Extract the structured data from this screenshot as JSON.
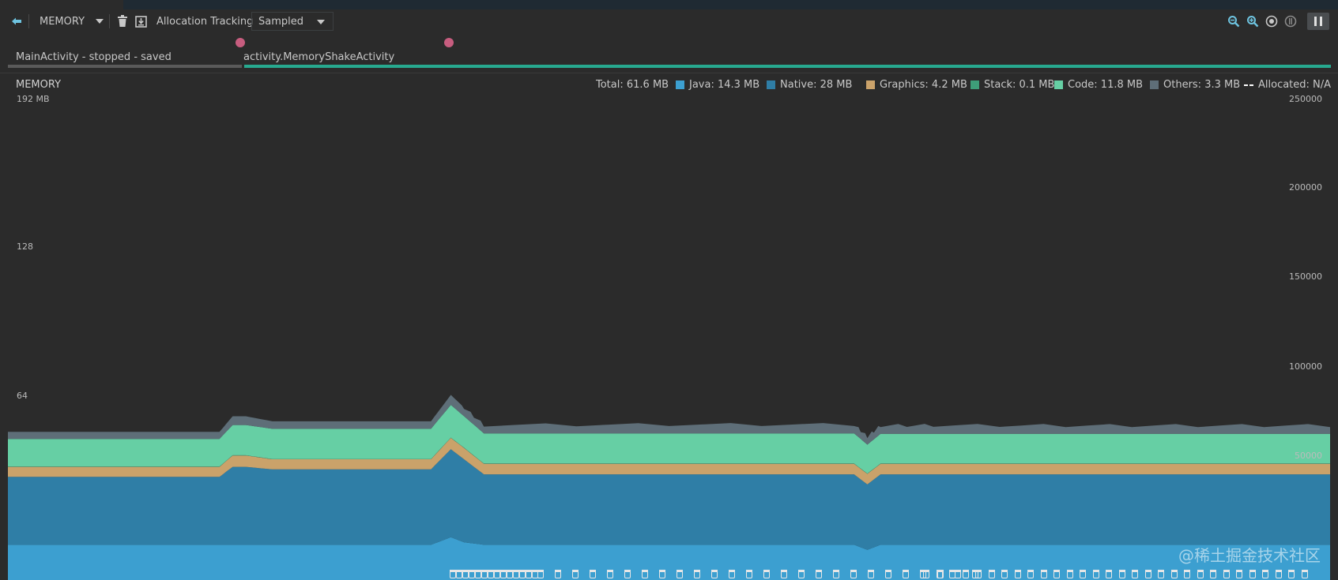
{
  "toolbar": {
    "profiler_label": "MEMORY",
    "allocation_tracking_label": "Allocation Tracking",
    "sampling_mode": "Sampled"
  },
  "events": {
    "activities": [
      {
        "label": "MainActivity - stopped - saved",
        "state": "stopped"
      },
      {
        "label": "activity.MemoryShakeActivity",
        "state": "active"
      }
    ]
  },
  "chart": {
    "title": "MEMORY",
    "legend": [
      {
        "label": "Total: 61.6 MB",
        "color": ""
      },
      {
        "label": "Java: 14.3 MB",
        "color": "#3c9fd0"
      },
      {
        "label": "Native: 28 MB",
        "color": "#2f7ea6"
      },
      {
        "label": "Graphics: 4.2 MB",
        "color": "#caa26a"
      },
      {
        "label": "Stack: 0.1 MB",
        "color": "#3e9e79"
      },
      {
        "label": "Code: 11.8 MB",
        "color": "#66cfa4"
      },
      {
        "label": "Others: 3.3 MB",
        "color": "#5e6e78"
      },
      {
        "label": "Allocated: N/A",
        "color": "#ffffff"
      }
    ],
    "left_axis": [
      "192 MB",
      "128",
      "64"
    ],
    "right_axis": [
      "250000",
      "200000",
      "150000",
      "100000",
      "50000"
    ]
  },
  "watermark": "@稀土掘金技术社区",
  "chart_data": {
    "type": "area",
    "stacked": true,
    "x_unit": "time (samples)",
    "ylim": [
      0,
      192
    ],
    "y_unit": "MB",
    "right_axis_ylim": [
      0,
      250000
    ],
    "x": [
      0,
      0.16,
      0.17,
      0.18,
      0.2,
      0.32,
      0.335,
      0.345,
      0.36,
      0.5,
      0.64,
      0.65,
      0.66,
      0.7,
      0.8,
      0.9,
      1.0
    ],
    "series": [
      {
        "name": "Java",
        "color": "#3c9fd0",
        "values": [
          14,
          14,
          14,
          14,
          14,
          14,
          17,
          15,
          14,
          14,
          14,
          12,
          14,
          14,
          14,
          14,
          14
        ]
      },
      {
        "name": "Native",
        "color": "#2f7ea6",
        "values": [
          27,
          27,
          31,
          31,
          30,
          30,
          35,
          33,
          28,
          28,
          28,
          26,
          28,
          28,
          28,
          28,
          28
        ]
      },
      {
        "name": "Graphics",
        "color": "#caa26a",
        "values": [
          4,
          4,
          4.5,
          4.5,
          4,
          4,
          4.5,
          4.5,
          4.2,
          4.2,
          4.2,
          4.2,
          4.2,
          4.2,
          4.2,
          4.2,
          4.2
        ]
      },
      {
        "name": "Stack",
        "color": "#3e9e79",
        "values": [
          0.1,
          0.1,
          0.1,
          0.1,
          0.1,
          0.1,
          0.1,
          0.1,
          0.1,
          0.1,
          0.1,
          0.1,
          0.1,
          0.1,
          0.1,
          0.1,
          0.1
        ]
      },
      {
        "name": "Code",
        "color": "#66cfa4",
        "values": [
          11,
          11,
          12,
          12,
          12,
          12,
          13,
          12.5,
          12,
          12,
          12,
          11.5,
          11.8,
          11.8,
          11.8,
          11.8,
          11.8
        ]
      },
      {
        "name": "Others",
        "color": "#5e6e78",
        "values": [
          2.8,
          2.8,
          3.5,
          3.5,
          3,
          3,
          4,
          3.5,
          3.3,
          3.5,
          3.5,
          3.2,
          3.3,
          3.4,
          3.3,
          3.3,
          3.3
        ]
      }
    ],
    "gc_events": 70
  }
}
